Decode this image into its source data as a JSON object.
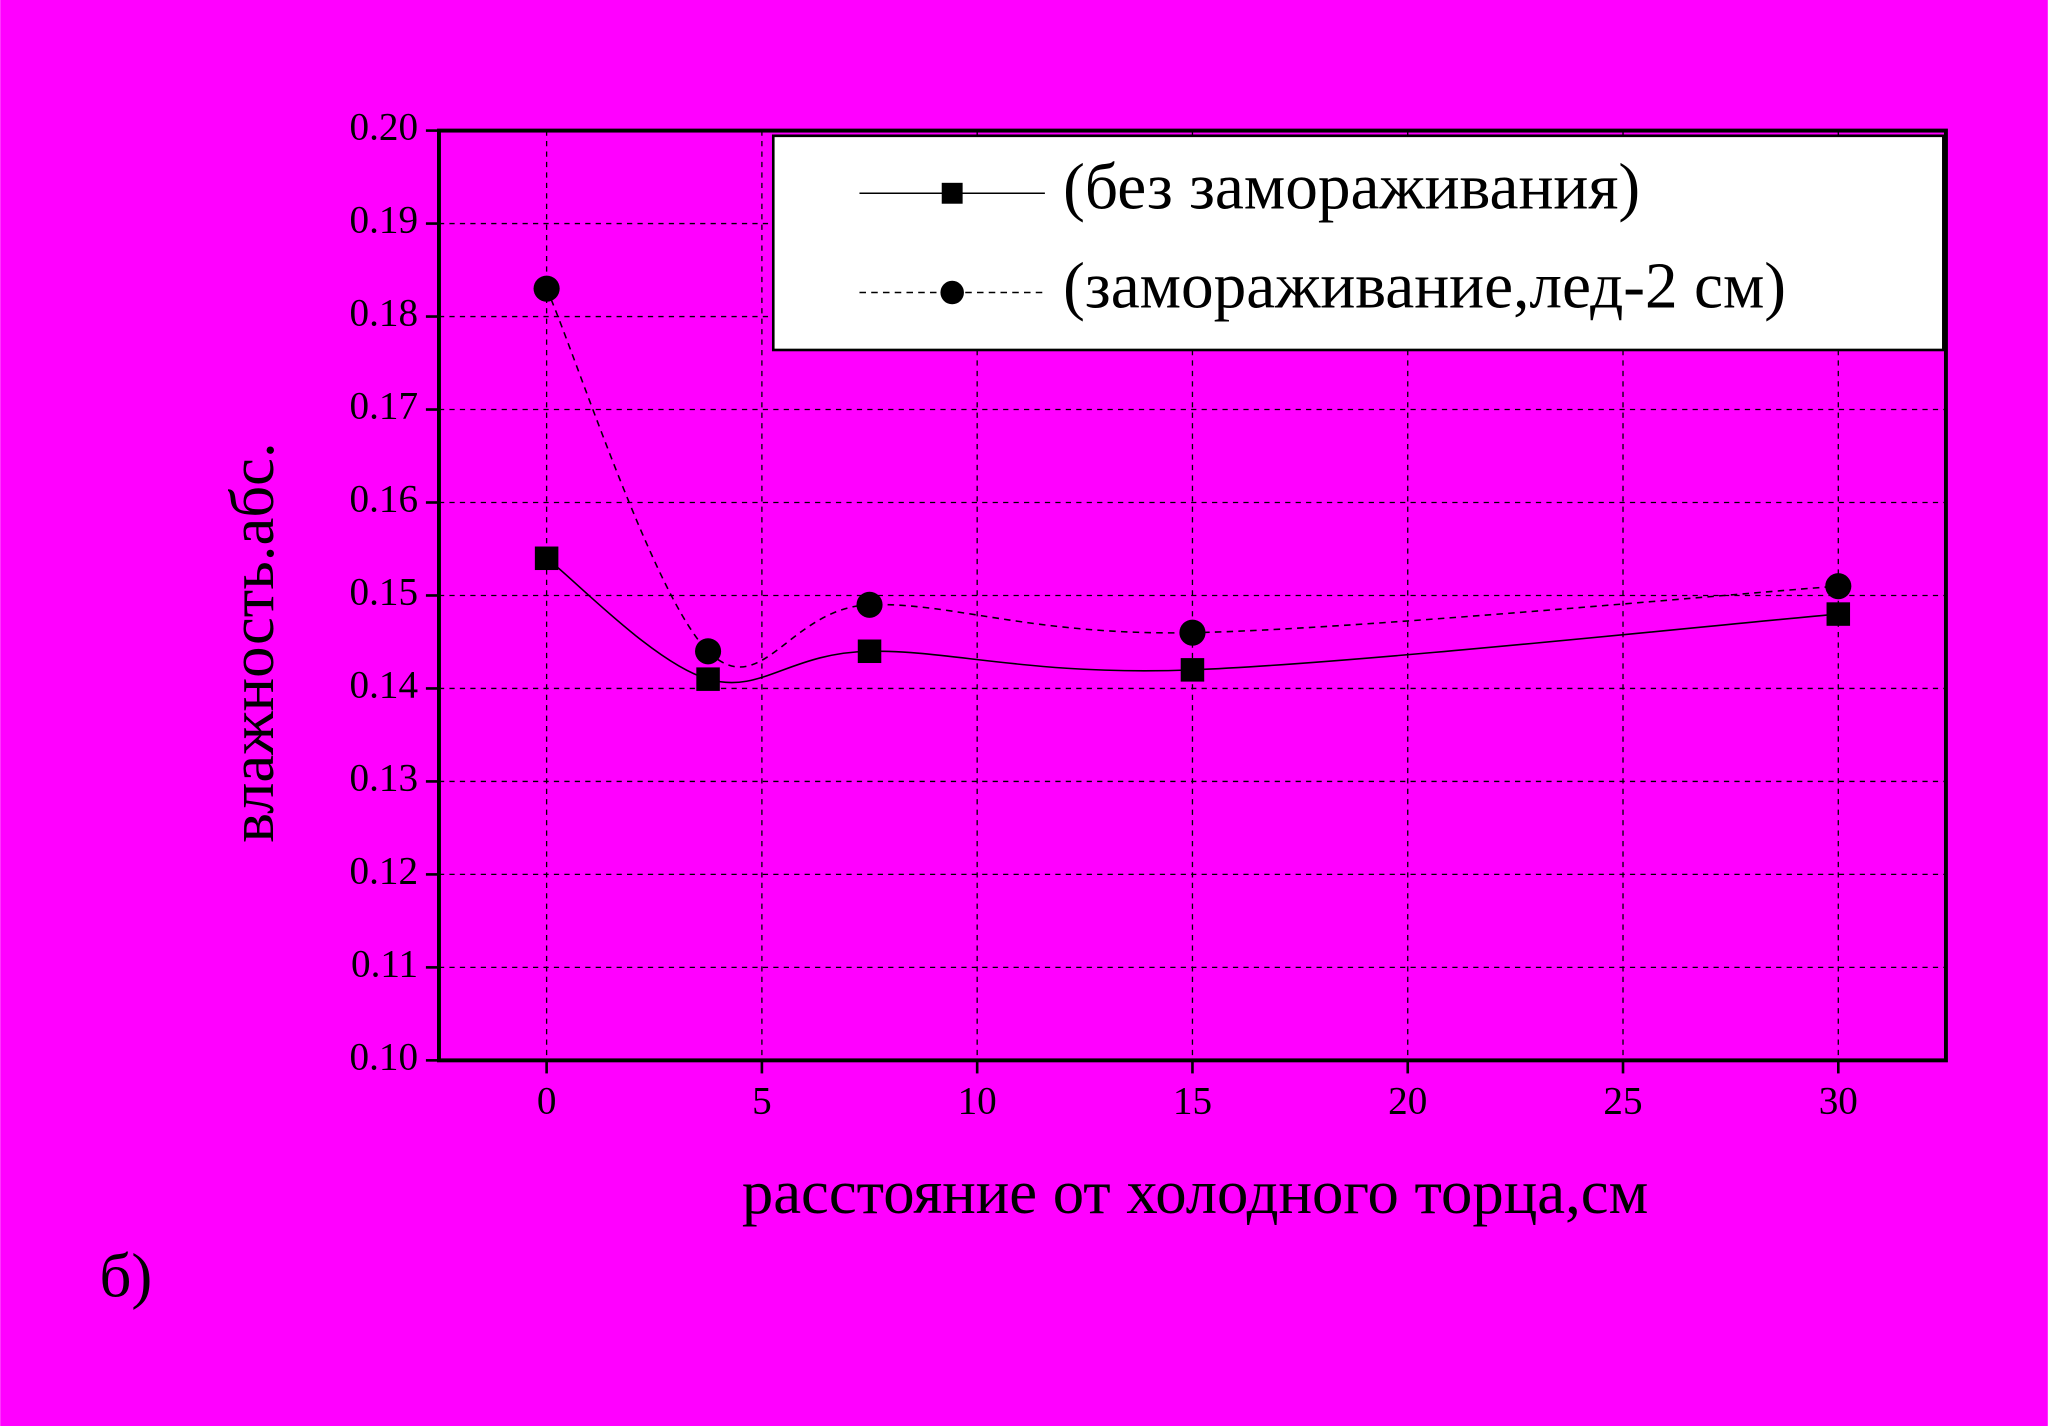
{
  "chart_data": {
    "type": "line",
    "x_label": "расстояние от холодного торца,см",
    "y_label": "влажность.абс.",
    "panel_label": "б)",
    "x": [
      0,
      3.75,
      7.5,
      15,
      30
    ],
    "series": [
      {
        "name": "(без замораживания)",
        "color": "#000000",
        "line_style": "solid",
        "marker": "square",
        "values": [
          0.154,
          0.141,
          0.144,
          0.142,
          0.148
        ]
      },
      {
        "name": "(замораживание,лед-2 см)",
        "color": "#000000",
        "line_style": "dashed",
        "marker": "circle",
        "values": [
          0.183,
          0.144,
          0.149,
          0.146,
          0.151
        ]
      }
    ],
    "xlim": [
      -2.5,
      32.5
    ],
    "xticks": [
      0,
      5,
      10,
      15,
      20,
      25,
      30
    ],
    "ylim": [
      0.1,
      0.2
    ],
    "yticks": [
      {
        "value": 0.1,
        "label": "0.10"
      },
      0.11,
      0.12,
      0.13,
      0.14,
      0.15,
      0.16,
      0.17,
      0.18,
      0.19,
      {
        "value": 0.2,
        "label": "0.20"
      }
    ],
    "grid": true,
    "smooth": true,
    "legend": "top-right",
    "background": "#ff00ff"
  }
}
